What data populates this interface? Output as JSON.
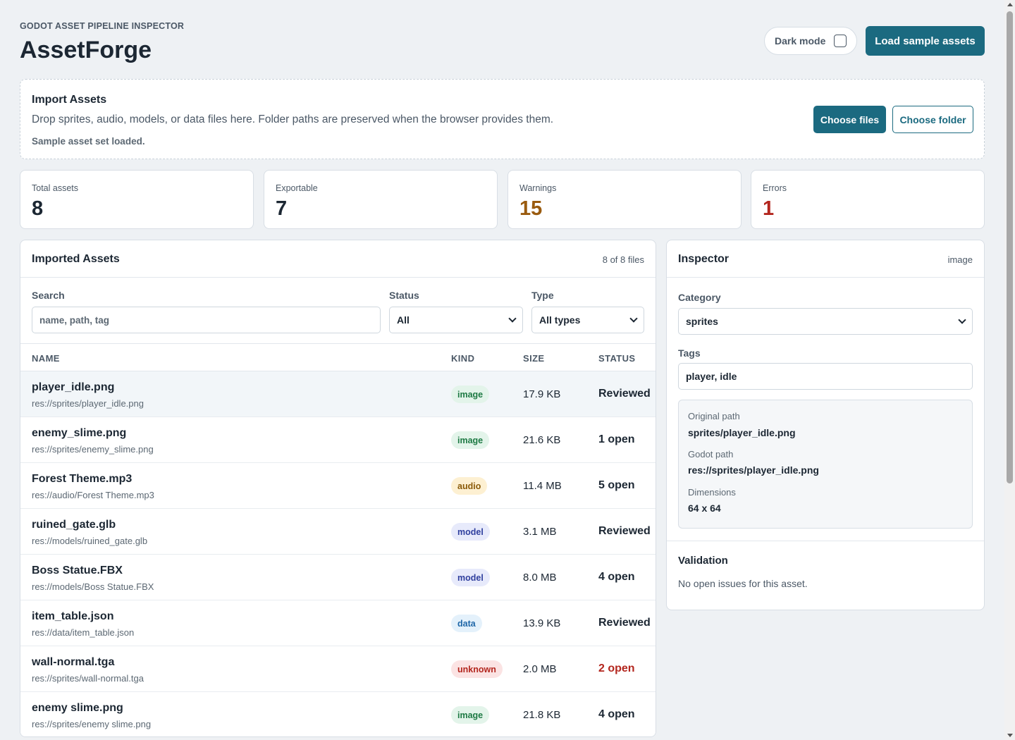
{
  "header": {
    "eyebrow": "GODOT ASSET PIPELINE INSPECTOR",
    "title": "AssetForge",
    "dark_mode_label": "Dark mode",
    "dark_mode_checked": false,
    "load_button": "Load sample assets"
  },
  "import": {
    "title": "Import Assets",
    "description": "Drop sprites, audio, models, or data files here. Folder paths are preserved when the browser provides them.",
    "status": "Sample asset set loaded.",
    "choose_files": "Choose files",
    "choose_folder": "Choose folder"
  },
  "stats": [
    {
      "label": "Total assets",
      "value": "8",
      "color": "#1c2733"
    },
    {
      "label": "Exportable",
      "value": "7",
      "color": "#1c2733"
    },
    {
      "label": "Warnings",
      "value": "15",
      "color": "#9a5b0f"
    },
    {
      "label": "Errors",
      "value": "1",
      "color": "#b3261e"
    }
  ],
  "assets": {
    "title": "Imported Assets",
    "count": "8 of 8 files",
    "filters": {
      "search_label": "Search",
      "search_placeholder": "name, path, tag",
      "status_label": "Status",
      "status_value": "All",
      "type_label": "Type",
      "type_value": "All types"
    },
    "columns": {
      "name": "NAME",
      "kind": "KIND",
      "size": "SIZE",
      "status": "STATUS"
    },
    "rows": [
      {
        "name": "player_idle.png",
        "path": "res://sprites/player_idle.png",
        "kind": "image",
        "size": "17.9 KB",
        "status": "Reviewed",
        "status_color": "#1c2733",
        "selected": true
      },
      {
        "name": "enemy_slime.png",
        "path": "res://sprites/enemy_slime.png",
        "kind": "image",
        "size": "21.6 KB",
        "status": "1 open",
        "status_color": "#1c2733",
        "selected": false
      },
      {
        "name": "Forest Theme.mp3",
        "path": "res://audio/Forest Theme.mp3",
        "kind": "audio",
        "size": "11.4 MB",
        "status": "5 open",
        "status_color": "#1c2733",
        "selected": false
      },
      {
        "name": "ruined_gate.glb",
        "path": "res://models/ruined_gate.glb",
        "kind": "model",
        "size": "3.1 MB",
        "status": "Reviewed",
        "status_color": "#1c2733",
        "selected": false
      },
      {
        "name": "Boss Statue.FBX",
        "path": "res://models/Boss Statue.FBX",
        "kind": "model",
        "size": "8.0 MB",
        "status": "4 open",
        "status_color": "#1c2733",
        "selected": false
      },
      {
        "name": "item_table.json",
        "path": "res://data/item_table.json",
        "kind": "data",
        "size": "13.9 KB",
        "status": "Reviewed",
        "status_color": "#1c2733",
        "selected": false
      },
      {
        "name": "wall-normal.tga",
        "path": "res://sprites/wall-normal.tga",
        "kind": "unknown",
        "size": "2.0 MB",
        "status": "2 open",
        "status_color": "#b3261e",
        "selected": false
      },
      {
        "name": "enemy slime.png",
        "path": "res://sprites/enemy slime.png",
        "kind": "image",
        "size": "21.8 KB",
        "status": "4 open",
        "status_color": "#1c2733",
        "selected": false
      }
    ]
  },
  "kind_colors": {
    "image": {
      "bg": "#e3f4ea",
      "fg": "#1e7a44"
    },
    "audio": {
      "bg": "#fdf0d2",
      "fg": "#8a5a08"
    },
    "model": {
      "bg": "#e7eafb",
      "fg": "#2f3f9e"
    },
    "data": {
      "bg": "#e4f1fb",
      "fg": "#1f67a8"
    },
    "unknown": {
      "bg": "#fbe3e3",
      "fg": "#b3261e"
    }
  },
  "inspector": {
    "title": "Inspector",
    "kind": "image",
    "category_label": "Category",
    "category_value": "sprites",
    "tags_label": "Tags",
    "tags_value": "player, idle",
    "details": [
      {
        "label": "Original path",
        "value": "sprites/player_idle.png"
      },
      {
        "label": "Godot path",
        "value": "res://sprites/player_idle.png"
      },
      {
        "label": "Dimensions",
        "value": "64 x 64"
      }
    ],
    "validation_title": "Validation",
    "validation_text": "No open issues for this asset."
  }
}
